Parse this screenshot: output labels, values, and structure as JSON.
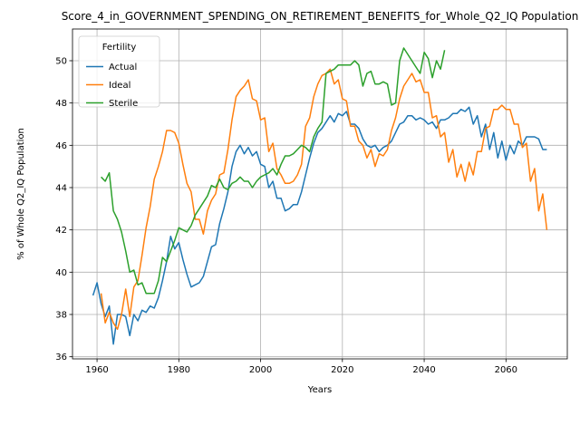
{
  "chart_data": {
    "type": "line",
    "title": "Score_4_in_GOVERNMENT_SPENDING_ON_RETIREMENT_BENEFITS_for_Whole_Q2_IQ Population",
    "xlabel": "Years",
    "ylabel": "% of Whole Q2_IQ Population",
    "xlim": [
      1954,
      2075
    ],
    "ylim": [
      35.9,
      51.5
    ],
    "xticks": [
      1960,
      1980,
      2000,
      2020,
      2040,
      2060
    ],
    "yticks": [
      36,
      38,
      40,
      42,
      44,
      46,
      48,
      50
    ],
    "grid": true,
    "legend": {
      "title": "Fertility",
      "position": "top-left"
    },
    "series": [
      {
        "name": "Actual",
        "color": "#1f77b4",
        "points": [
          [
            1959,
            38.9
          ],
          [
            1960,
            39.5
          ],
          [
            1961,
            38.5
          ],
          [
            1962,
            37.9
          ],
          [
            1963,
            38.4
          ],
          [
            1964,
            36.6
          ],
          [
            1965,
            38.0
          ],
          [
            1966,
            38.0
          ],
          [
            1967,
            37.9
          ],
          [
            1968,
            37.0
          ],
          [
            1969,
            38.0
          ],
          [
            1970,
            37.7
          ],
          [
            1971,
            38.2
          ],
          [
            1972,
            38.1
          ],
          [
            1973,
            38.4
          ],
          [
            1974,
            38.3
          ],
          [
            1975,
            38.8
          ],
          [
            1976,
            39.6
          ],
          [
            1977,
            40.5
          ],
          [
            1978,
            41.7
          ],
          [
            1979,
            41.1
          ],
          [
            1980,
            41.4
          ],
          [
            1981,
            40.6
          ],
          [
            1982,
            39.9
          ],
          [
            1983,
            39.3
          ],
          [
            1984,
            39.4
          ],
          [
            1985,
            39.5
          ],
          [
            1986,
            39.8
          ],
          [
            1987,
            40.5
          ],
          [
            1988,
            41.2
          ],
          [
            1989,
            41.3
          ],
          [
            1990,
            42.3
          ],
          [
            1991,
            43.0
          ],
          [
            1992,
            43.8
          ],
          [
            1993,
            45.0
          ],
          [
            1994,
            45.7
          ],
          [
            1995,
            46.0
          ],
          [
            1996,
            45.6
          ],
          [
            1997,
            45.9
          ],
          [
            1998,
            45.5
          ],
          [
            1999,
            45.7
          ],
          [
            2000,
            45.1
          ],
          [
            2001,
            45.0
          ],
          [
            2002,
            44.0
          ],
          [
            2003,
            44.3
          ],
          [
            2004,
            43.5
          ],
          [
            2005,
            43.5
          ],
          [
            2006,
            42.9
          ],
          [
            2007,
            43.0
          ],
          [
            2008,
            43.2
          ],
          [
            2009,
            43.2
          ],
          [
            2010,
            43.8
          ],
          [
            2011,
            44.6
          ],
          [
            2012,
            45.4
          ],
          [
            2013,
            46.1
          ],
          [
            2014,
            46.6
          ],
          [
            2015,
            46.8
          ],
          [
            2016,
            47.1
          ],
          [
            2017,
            47.4
          ],
          [
            2018,
            47.1
          ],
          [
            2019,
            47.5
          ],
          [
            2020,
            47.4
          ],
          [
            2021,
            47.6
          ],
          [
            2022,
            47.0
          ],
          [
            2023,
            47.0
          ],
          [
            2024,
            46.8
          ],
          [
            2025,
            46.3
          ],
          [
            2026,
            46.0
          ],
          [
            2027,
            45.9
          ],
          [
            2028,
            46.0
          ],
          [
            2029,
            45.7
          ],
          [
            2030,
            45.9
          ],
          [
            2031,
            46.0
          ],
          [
            2032,
            46.2
          ],
          [
            2033,
            46.6
          ],
          [
            2034,
            47.0
          ],
          [
            2035,
            47.1
          ],
          [
            2036,
            47.4
          ],
          [
            2037,
            47.4
          ],
          [
            2038,
            47.2
          ],
          [
            2039,
            47.3
          ],
          [
            2040,
            47.2
          ],
          [
            2041,
            47.0
          ],
          [
            2042,
            47.1
          ],
          [
            2043,
            46.8
          ],
          [
            2044,
            47.2
          ],
          [
            2045,
            47.2
          ],
          [
            2046,
            47.3
          ],
          [
            2047,
            47.5
          ],
          [
            2048,
            47.5
          ],
          [
            2049,
            47.7
          ],
          [
            2050,
            47.6
          ],
          [
            2051,
            47.8
          ],
          [
            2052,
            47.0
          ],
          [
            2053,
            47.4
          ],
          [
            2054,
            46.4
          ],
          [
            2055,
            47.0
          ],
          [
            2056,
            45.8
          ],
          [
            2057,
            46.6
          ],
          [
            2058,
            45.4
          ],
          [
            2059,
            46.2
          ],
          [
            2060,
            45.3
          ],
          [
            2061,
            46.0
          ],
          [
            2062,
            45.6
          ],
          [
            2063,
            46.2
          ],
          [
            2064,
            46.0
          ],
          [
            2065,
            46.4
          ],
          [
            2066,
            46.4
          ],
          [
            2067,
            46.4
          ],
          [
            2068,
            46.3
          ],
          [
            2069,
            45.8
          ],
          [
            2070,
            45.8
          ]
        ]
      },
      {
        "name": "Ideal",
        "color": "#ff7f0e",
        "points": [
          [
            1961,
            39.0
          ],
          [
            1962,
            37.6
          ],
          [
            1963,
            38.1
          ],
          [
            1964,
            37.6
          ],
          [
            1965,
            37.3
          ],
          [
            1966,
            38.0
          ],
          [
            1967,
            39.2
          ],
          [
            1968,
            37.9
          ],
          [
            1969,
            39.3
          ],
          [
            1970,
            39.6
          ],
          [
            1971,
            40.8
          ],
          [
            1972,
            42.1
          ],
          [
            1973,
            43.1
          ],
          [
            1974,
            44.4
          ],
          [
            1975,
            45.0
          ],
          [
            1976,
            45.7
          ],
          [
            1977,
            46.7
          ],
          [
            1978,
            46.7
          ],
          [
            1979,
            46.6
          ],
          [
            1980,
            46.1
          ],
          [
            1981,
            45.1
          ],
          [
            1982,
            44.2
          ],
          [
            1983,
            43.8
          ],
          [
            1984,
            42.5
          ],
          [
            1985,
            42.5
          ],
          [
            1986,
            41.8
          ],
          [
            1987,
            42.9
          ],
          [
            1988,
            43.4
          ],
          [
            1989,
            43.7
          ],
          [
            1990,
            44.6
          ],
          [
            1991,
            44.7
          ],
          [
            1992,
            45.8
          ],
          [
            1993,
            47.2
          ],
          [
            1994,
            48.3
          ],
          [
            1995,
            48.6
          ],
          [
            1996,
            48.8
          ],
          [
            1997,
            49.1
          ],
          [
            1998,
            48.2
          ],
          [
            1999,
            48.1
          ],
          [
            2000,
            47.2
          ],
          [
            2001,
            47.3
          ],
          [
            2002,
            45.7
          ],
          [
            2003,
            46.1
          ],
          [
            2004,
            44.9
          ],
          [
            2005,
            44.6
          ],
          [
            2006,
            44.2
          ],
          [
            2007,
            44.2
          ],
          [
            2008,
            44.3
          ],
          [
            2009,
            44.6
          ],
          [
            2010,
            45.1
          ],
          [
            2011,
            46.9
          ],
          [
            2012,
            47.3
          ],
          [
            2013,
            48.3
          ],
          [
            2014,
            48.9
          ],
          [
            2015,
            49.3
          ],
          [
            2016,
            49.4
          ],
          [
            2017,
            49.6
          ],
          [
            2018,
            48.9
          ],
          [
            2019,
            49.1
          ],
          [
            2020,
            48.2
          ],
          [
            2021,
            48.1
          ],
          [
            2022,
            46.9
          ],
          [
            2023,
            46.9
          ],
          [
            2024,
            46.2
          ],
          [
            2025,
            46.0
          ],
          [
            2026,
            45.4
          ],
          [
            2027,
            45.8
          ],
          [
            2028,
            45.0
          ],
          [
            2029,
            45.6
          ],
          [
            2030,
            45.5
          ],
          [
            2031,
            45.8
          ],
          [
            2032,
            46.7
          ],
          [
            2033,
            47.3
          ],
          [
            2034,
            48.2
          ],
          [
            2035,
            48.8
          ],
          [
            2036,
            49.1
          ],
          [
            2037,
            49.4
          ],
          [
            2038,
            49.0
          ],
          [
            2039,
            49.1
          ],
          [
            2040,
            48.5
          ],
          [
            2041,
            48.5
          ],
          [
            2042,
            47.3
          ],
          [
            2043,
            47.4
          ],
          [
            2044,
            46.4
          ],
          [
            2045,
            46.6
          ],
          [
            2046,
            45.2
          ],
          [
            2047,
            45.8
          ],
          [
            2048,
            44.5
          ],
          [
            2049,
            45.1
          ],
          [
            2050,
            44.3
          ],
          [
            2051,
            45.2
          ],
          [
            2052,
            44.6
          ],
          [
            2053,
            45.7
          ],
          [
            2054,
            45.7
          ],
          [
            2055,
            46.8
          ],
          [
            2056,
            46.9
          ],
          [
            2057,
            47.7
          ],
          [
            2058,
            47.7
          ],
          [
            2059,
            47.9
          ],
          [
            2060,
            47.7
          ],
          [
            2061,
            47.7
          ],
          [
            2062,
            47.0
          ],
          [
            2063,
            47.0
          ],
          [
            2064,
            45.9
          ],
          [
            2065,
            46.1
          ],
          [
            2066,
            44.3
          ],
          [
            2067,
            44.9
          ],
          [
            2068,
            42.9
          ],
          [
            2069,
            43.7
          ],
          [
            2070,
            42.0
          ]
        ]
      },
      {
        "name": "Sterile",
        "color": "#2ca02c",
        "points": [
          [
            1961,
            44.5
          ],
          [
            1962,
            44.3
          ],
          [
            1963,
            44.7
          ],
          [
            1964,
            42.9
          ],
          [
            1965,
            42.5
          ],
          [
            1966,
            41.9
          ],
          [
            1967,
            41.0
          ],
          [
            1968,
            40.0
          ],
          [
            1969,
            40.1
          ],
          [
            1970,
            39.4
          ],
          [
            1971,
            39.5
          ],
          [
            1972,
            39.0
          ],
          [
            1973,
            39.0
          ],
          [
            1974,
            39.0
          ],
          [
            1975,
            39.6
          ],
          [
            1976,
            40.7
          ],
          [
            1977,
            40.5
          ],
          [
            1978,
            41.0
          ],
          [
            1979,
            41.5
          ],
          [
            1980,
            42.1
          ],
          [
            1981,
            42.0
          ],
          [
            1982,
            41.9
          ],
          [
            1983,
            42.2
          ],
          [
            1984,
            42.7
          ],
          [
            1985,
            43.0
          ],
          [
            1986,
            43.3
          ],
          [
            1987,
            43.6
          ],
          [
            1988,
            44.1
          ],
          [
            1989,
            44.0
          ],
          [
            1990,
            44.4
          ],
          [
            1991,
            44.0
          ],
          [
            1992,
            43.9
          ],
          [
            1993,
            44.2
          ],
          [
            1994,
            44.3
          ],
          [
            1995,
            44.5
          ],
          [
            1996,
            44.3
          ],
          [
            1997,
            44.3
          ],
          [
            1998,
            44.0
          ],
          [
            1999,
            44.3
          ],
          [
            2000,
            44.5
          ],
          [
            2001,
            44.6
          ],
          [
            2002,
            44.7
          ],
          [
            2003,
            44.9
          ],
          [
            2004,
            44.6
          ],
          [
            2005,
            45.1
          ],
          [
            2006,
            45.5
          ],
          [
            2007,
            45.5
          ],
          [
            2008,
            45.6
          ],
          [
            2009,
            45.8
          ],
          [
            2010,
            46.0
          ],
          [
            2011,
            45.9
          ],
          [
            2012,
            45.7
          ],
          [
            2013,
            46.4
          ],
          [
            2014,
            46.8
          ],
          [
            2015,
            47.1
          ],
          [
            2016,
            49.4
          ],
          [
            2017,
            49.5
          ],
          [
            2018,
            49.6
          ],
          [
            2019,
            49.8
          ],
          [
            2020,
            49.8
          ],
          [
            2021,
            49.8
          ],
          [
            2022,
            49.8
          ],
          [
            2023,
            50.0
          ],
          [
            2024,
            49.8
          ],
          [
            2025,
            48.8
          ],
          [
            2026,
            49.4
          ],
          [
            2027,
            49.5
          ],
          [
            2028,
            48.9
          ],
          [
            2029,
            48.9
          ],
          [
            2030,
            49.0
          ],
          [
            2031,
            48.9
          ],
          [
            2032,
            47.9
          ],
          [
            2033,
            48.0
          ],
          [
            2034,
            50.0
          ],
          [
            2035,
            50.6
          ],
          [
            2036,
            50.3
          ],
          [
            2037,
            50.0
          ],
          [
            2038,
            49.7
          ],
          [
            2039,
            49.4
          ],
          [
            2040,
            50.4
          ],
          [
            2041,
            50.1
          ],
          [
            2042,
            49.2
          ],
          [
            2043,
            50.0
          ],
          [
            2044,
            49.6
          ],
          [
            2045,
            50.5
          ]
        ]
      }
    ]
  }
}
